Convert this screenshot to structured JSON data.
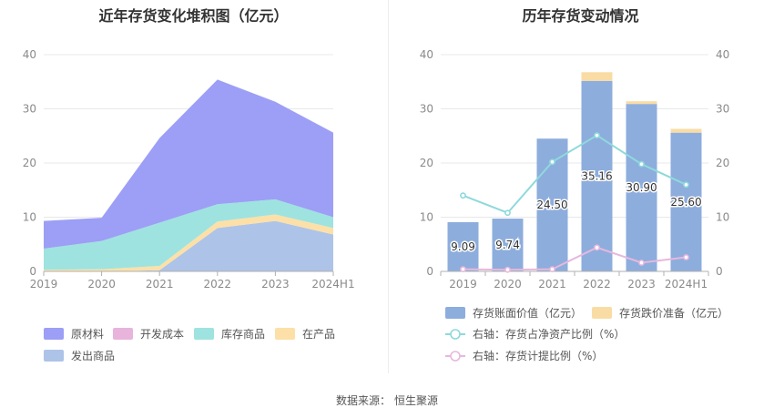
{
  "left_chart_title": "近年存货变化堆积图（亿元）",
  "right_chart_title": "历年存货变动情况",
  "source_label": "数据来源：",
  "source_value": "恒生聚源",
  "colors": {
    "raw": "#9c9ff5",
    "dev": "#e8b4dc",
    "goods": "#9ee3df",
    "wip": "#fce0a8",
    "shipped": "#aec3e8",
    "bar": "#8daddd",
    "bar_prov": "#f9dca4",
    "line1": "#8fd9db",
    "line2": "#e7b8dd"
  },
  "chart_data": [
    {
      "type": "area",
      "title": "近年存货变化堆积图（亿元）",
      "x": [
        "2019",
        "2020",
        "2021",
        "2022",
        "2023",
        "2024H1"
      ],
      "ylim": [
        0,
        40
      ],
      "yticks": [
        0,
        10,
        20,
        30,
        40
      ],
      "series": [
        {
          "name": "发出商品",
          "values": [
            0.0,
            0.0,
            0.2,
            8.0,
            9.3,
            6.8
          ]
        },
        {
          "name": "在产品",
          "values": [
            0.3,
            0.4,
            0.8,
            1.2,
            1.2,
            1.2
          ]
        },
        {
          "name": "库存商品",
          "values": [
            3.9,
            5.2,
            8.0,
            3.2,
            2.8,
            2.0
          ]
        },
        {
          "name": "开发成本",
          "values": [
            0.0,
            0.0,
            0.0,
            0.0,
            0.0,
            0.0
          ]
        },
        {
          "name": "原材料",
          "values": [
            5.1,
            4.3,
            15.6,
            23.0,
            18.0,
            15.6
          ]
        }
      ],
      "legend": [
        "原材料",
        "开发成本",
        "库存商品",
        "在产品",
        "发出商品"
      ]
    },
    {
      "type": "bar",
      "title": "历年存货变动情况",
      "categories": [
        "2019",
        "2020",
        "2021",
        "2022",
        "2023",
        "2024H1"
      ],
      "ylim": [
        0,
        40
      ],
      "yticks": [
        0,
        10,
        20,
        30,
        40
      ],
      "y2lim": [
        0,
        40
      ],
      "y2ticks": [
        0,
        10,
        20,
        30,
        40
      ],
      "series": [
        {
          "name": "存货账面价值（亿元）",
          "values": [
            9.09,
            9.74,
            24.5,
            35.16,
            30.9,
            25.6
          ],
          "labels": [
            "9.09",
            "9.74",
            "24.50",
            "35.16",
            "30.90",
            "25.60"
          ]
        },
        {
          "name": "存货跌价准备（亿元）",
          "values": [
            0.0,
            0.0,
            0.0,
            1.6,
            0.5,
            0.7
          ]
        },
        {
          "name": "右轴：存货占净资产比例（%）",
          "values": [
            14,
            10.8,
            20.2,
            25.1,
            19.8,
            16.0
          ]
        },
        {
          "name": "右轴：存货计提比例（%）",
          "values": [
            0.4,
            0.3,
            0.4,
            4.4,
            1.6,
            2.6
          ]
        }
      ]
    }
  ]
}
